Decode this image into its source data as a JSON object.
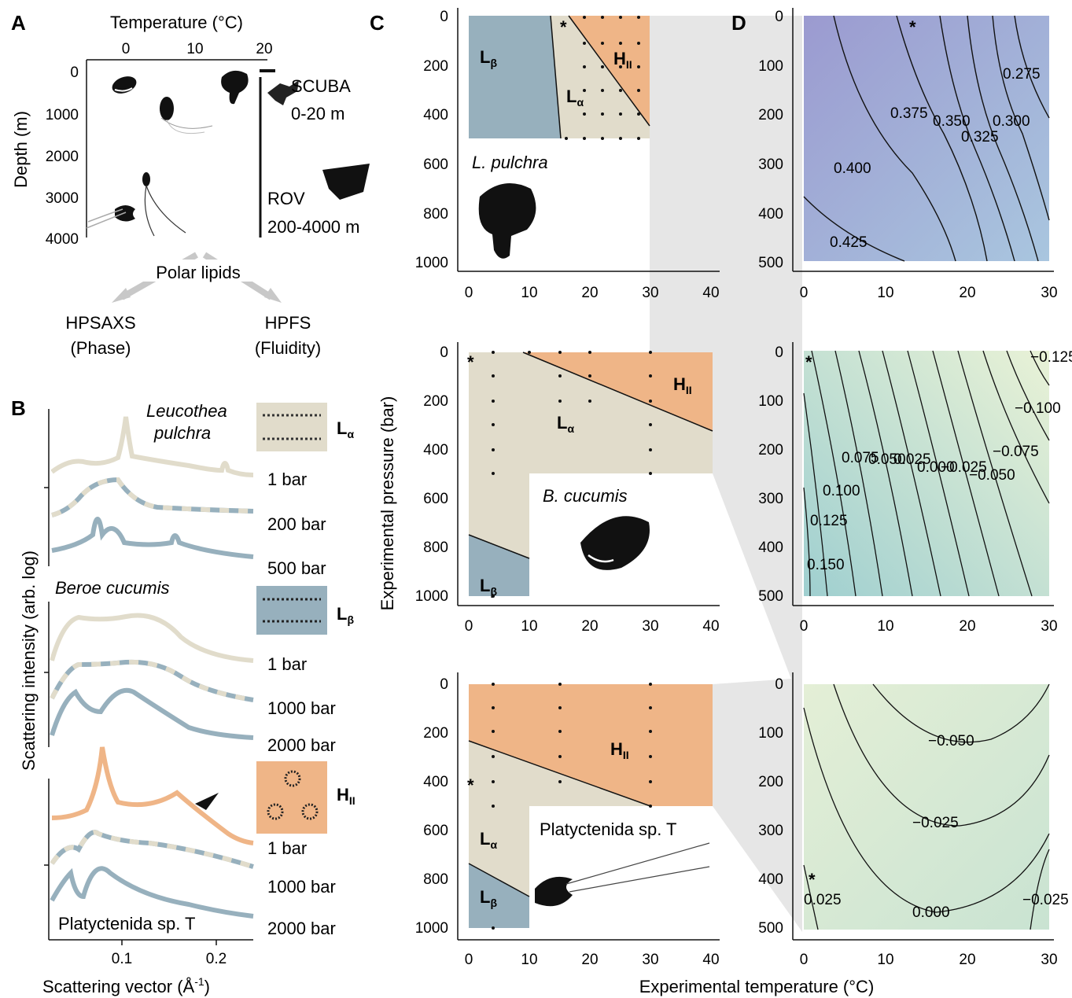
{
  "colors": {
    "lalpha": "#e1dccb",
    "lbeta": "#97b0bd",
    "hII": "#efb587",
    "lp_contour": "#8f8fc4",
    "bc_contour": "#a6d4c8",
    "pt_contour": "#cfe5cb"
  },
  "panelA": {
    "label": "A",
    "top_axis_label": "Temperature (°C)",
    "top_ticks": [
      "0",
      "10",
      "20"
    ],
    "y_axis_label": "Depth (m)",
    "y_ticks": [
      "0",
      "1000",
      "2000",
      "3000",
      "4000"
    ],
    "scuba_label": "SCUBA",
    "scuba_range": "0-20 m",
    "rov_label": "ROV",
    "rov_range": "200-4000 m",
    "polar_lipids": "Polar lipids",
    "hpsaxs": "HPSAXS",
    "hpsaxs_sub": "(Phase)",
    "hpfs": "HPFS",
    "hpfs_sub": "(Fluidity)",
    "icons": [
      "beroe-silhouette",
      "ctenophore-silhouette",
      "lobate-silhouette",
      "diver-silhouette",
      "rov-silhouette",
      "platyctenid-silhouette"
    ]
  },
  "panelB": {
    "label": "B",
    "y_axis_label": "Scattering intensity (arb. log)",
    "x_axis_label": "Scattering vector (Å",
    "x_axis_unit_sup": "-1",
    "x_axis_close": ")",
    "x_ticks": [
      "0.1",
      "0.2"
    ],
    "group1_species_line1": "Leucothea",
    "group1_species_line2": "pulchra",
    "group1_pressures": [
      "1 bar",
      "200 bar",
      "500 bar"
    ],
    "group2_species": "Beroe cucumis",
    "group2_pressures": [
      "1 bar",
      "1000 bar",
      "2000 bar"
    ],
    "group3_species": "Platyctenida sp. T",
    "group3_pressures": [
      "1 bar",
      "1000 bar",
      "2000 bar"
    ],
    "phase_la": "L",
    "phase_la_sub": "α",
    "phase_lb": "L",
    "phase_lb_sub": "β",
    "phase_h": "H",
    "phase_h_sub": "II"
  },
  "panelC": {
    "label": "C",
    "y_axis_label": "Experimental pressure (bar)",
    "y_ticks": [
      "0",
      "200",
      "400",
      "600",
      "800",
      "1000"
    ],
    "x_ticks": [
      "0",
      "10",
      "20",
      "30",
      "40"
    ],
    "species1": "L. pulchra",
    "species2": "B. cucumis",
    "species3": "Platyctenida sp. T",
    "star": "*",
    "phase_la": "L",
    "phase_la_sub": "α",
    "phase_lb": "L",
    "phase_lb_sub": "β",
    "phase_h": "H",
    "phase_h_sub": "II"
  },
  "panelD": {
    "label": "D",
    "y_ticks": [
      "0",
      "100",
      "200",
      "300",
      "400",
      "500"
    ],
    "x_ticks": [
      "0",
      "10",
      "20",
      "30"
    ],
    "star": "*",
    "plot1_labels": [
      "0.275",
      "0.300",
      "0.325",
      "0.350",
      "0.375",
      "0.400",
      "0.425"
    ],
    "plot2_labels": [
      "−0.125",
      "−0.100",
      "−0.075",
      "−0.050",
      "−0.025",
      "0.000",
      "0.025",
      "0.050",
      "0.075",
      "0.100",
      "0.125",
      "0.150"
    ],
    "plot3_labels": [
      "−0.050",
      "−0.025",
      "0.000",
      "−0.025",
      "0.025"
    ]
  },
  "x_axis_label": "Experimental temperature (°C)"
}
